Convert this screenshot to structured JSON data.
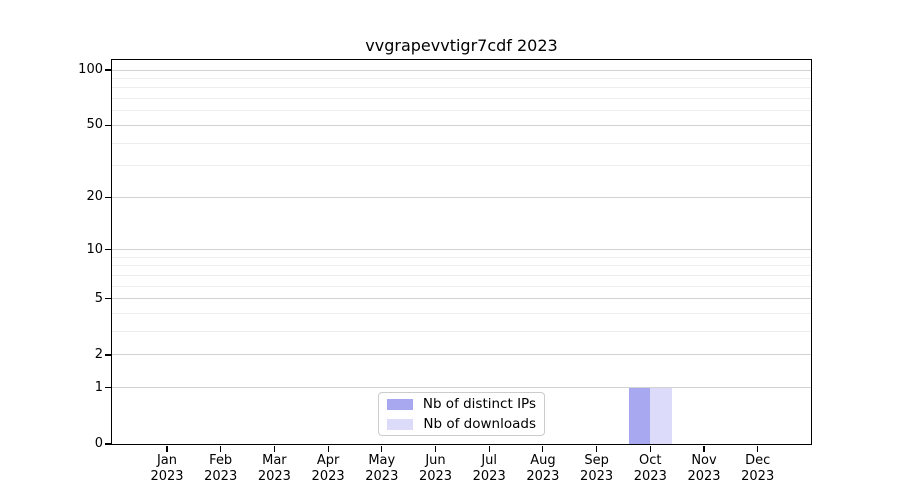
{
  "chart_data": {
    "type": "bar",
    "title": "vvgrapevvtigr7cdf 2023",
    "x": {
      "categories": [
        "Jan",
        "Feb",
        "Mar",
        "Apr",
        "May",
        "Jun",
        "Jul",
        "Aug",
        "Sep",
        "Oct",
        "Nov",
        "Dec"
      ],
      "year": "2023"
    },
    "y_axis": {
      "scale": "log1p",
      "tick_values": [
        0,
        1,
        2,
        5,
        10,
        20,
        50,
        100
      ],
      "minor_gridline_values": [
        3,
        4,
        6,
        7,
        8,
        9,
        30,
        40,
        60,
        70,
        80,
        90
      ],
      "ymin": 0,
      "ymax": 113
    },
    "series": [
      {
        "name": "Nb of distinct IPs",
        "color": "#a8a8f0",
        "values": [
          0,
          0,
          0,
          0,
          0,
          0,
          0,
          0,
          0,
          1,
          0,
          0
        ]
      },
      {
        "name": "Nb of downloads",
        "color": "#dcdcfa",
        "values": [
          0,
          0,
          0,
          0,
          0,
          0,
          0,
          0,
          0,
          1,
          0,
          0
        ]
      }
    ],
    "grid": "horizontal",
    "legend_position": "lower-center",
    "colors": {
      "grid_major": "#d2d2d2",
      "grid_minor": "#ededed",
      "spine": "#000000",
      "background": "#ffffff"
    }
  }
}
